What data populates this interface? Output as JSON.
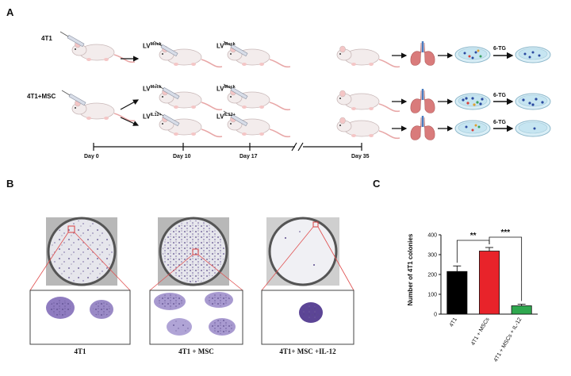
{
  "panels": {
    "a": "A",
    "b": "B",
    "c": "C"
  },
  "schematic": {
    "group1_label": "4T1",
    "group2_label": "4T1+MSC",
    "lv_prefix": "LV",
    "mock_sup": "Mock",
    "il12_sup": "IL12+",
    "treatment_label": "6-TG",
    "timeline_days": [
      "Day 0",
      "Day 10",
      "Day 17",
      "Day 35"
    ]
  },
  "dishes": {
    "captions": [
      "4T1",
      "4T1 + MSC",
      "4T1+ MSC +IL-12"
    ]
  },
  "colors": {
    "bar_4t1": "#000000",
    "bar_msc": "#e8232a",
    "bar_il12": "#2fa84f",
    "zoom_lines": "#e05050",
    "colony": "#7a4fa6"
  },
  "chart_data": {
    "type": "bar",
    "title": "",
    "ylabel": "Number of 4T1 colonies",
    "xlabel": "",
    "categories": [
      "4T1",
      "4T1 + MSCs",
      "4T1 + MSCs + IL-12"
    ],
    "values": [
      215,
      318,
      42
    ],
    "errors": [
      28,
      18,
      8
    ],
    "ylim": [
      0,
      400
    ],
    "yticks": [
      "0",
      "100",
      "200",
      "300",
      "400"
    ],
    "significance": [
      {
        "from": 0,
        "to": 1,
        "label": "**"
      },
      {
        "from": 1,
        "to": 2,
        "label": "***"
      }
    ],
    "grid": false
  }
}
